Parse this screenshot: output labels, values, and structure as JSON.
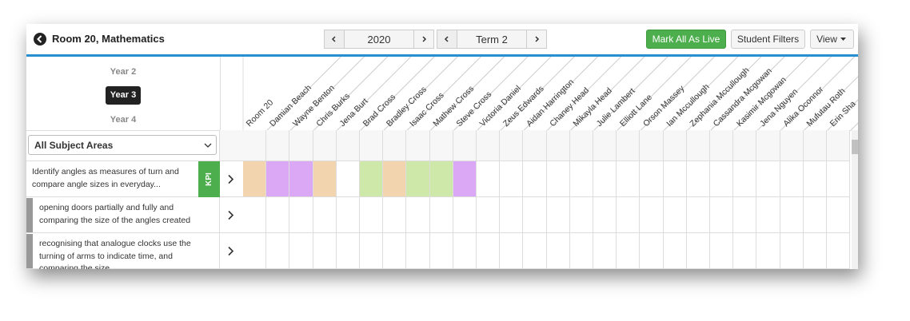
{
  "header": {
    "title": "Room 20, Mathematics",
    "year": "2020",
    "term": "Term 2",
    "buttons": [
      "Mark All As Live",
      "Student Filters",
      "View"
    ]
  },
  "years": [
    {
      "label": "Year 2",
      "selected": false
    },
    {
      "label": "Year 3",
      "selected": true
    },
    {
      "label": "Year 4",
      "selected": false
    }
  ],
  "filter": "All Subject Areas",
  "students": [
    "Room 20",
    "Damian Beach",
    "Wayne Benton",
    "Chris Burks",
    "Jena Burt",
    "Brad Cross",
    "Bradley Cross",
    "Isaac Cross",
    "Mathew Cross",
    "Steve Cross",
    "Victoria Daniel",
    "Zeus Edwards",
    "Aidan Harrington",
    "Chaney Head",
    "Mikayla Head",
    "Julie Lambert",
    "Elliott Lane",
    "Orson Massey",
    "Ian Mccullough",
    "Zephania Mccullough",
    "Cassandra Mcgowan",
    "Kasimir Mcgowan",
    "Jena Nguyen",
    "Alika Oconnor",
    "Mufutau Roth",
    "Erin Sha"
  ],
  "rows": [
    {
      "text": "Identify angles as measures of turn and compare angle sizes in everyday...",
      "badge": "KPI",
      "cell_colors": [
        "#f2d4ae",
        "#dba8f5",
        "#dba8f5",
        "#f2d4ae",
        null,
        "#cde8a8",
        "#f2d4ae",
        "#cde8a8",
        "#cde8a8",
        "#dba8f5"
      ]
    },
    {
      "text": "opening doors partially and fully and comparing the size of the angles created"
    },
    {
      "text": "recognising that analogue clocks use the turning of arms to indicate time, and comparing the size..."
    }
  ]
}
